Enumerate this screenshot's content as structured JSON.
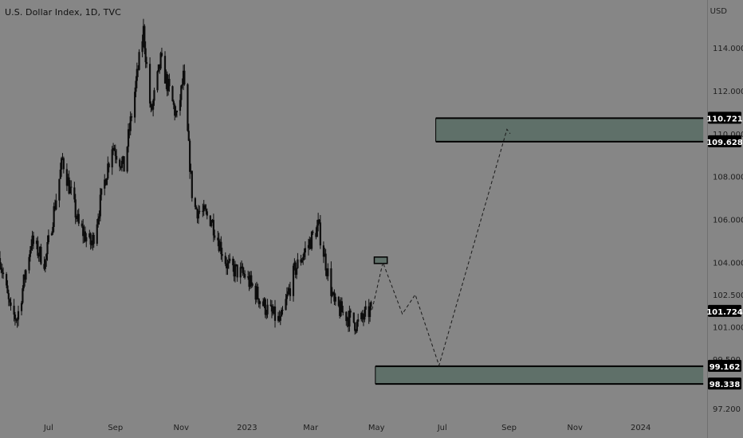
{
  "header": {
    "symbol_title": "U.S. Dollar Index, 1D, TVC",
    "currency": "USD"
  },
  "colors": {
    "background": "#868686",
    "candle": "#0d0d0d",
    "zone_fill": "#5f7069",
    "zone_border": "#000000",
    "label_bg": "#000000",
    "label_text": "#ffffff",
    "tick_text": "#1e1e1e",
    "projection": "#1a1a1a"
  },
  "chart_data": {
    "type": "candlestick",
    "title": "U.S. Dollar Index, 1D, TVC",
    "ylim": [
      97.2,
      115
    ],
    "x_ticks": [
      "Jul",
      "Sep",
      "Nov",
      "2023",
      "Mar",
      "May",
      "Jul",
      "Sep",
      "Nov",
      "2024"
    ],
    "y_ticks": [
      "114.000",
      "112.000",
      "110.000",
      "108.000",
      "106.000",
      "104.000",
      "102.500",
      "101.000",
      "99.500",
      "97.200"
    ],
    "price_path": [
      {
        "x": "2022-05-17",
        "y": 104.2
      },
      {
        "x": "2022-05-27",
        "y": 101.6
      },
      {
        "x": "2022-06-02",
        "y": 101.4
      },
      {
        "x": "2022-06-15",
        "y": 105.0
      },
      {
        "x": "2022-06-28",
        "y": 104.0
      },
      {
        "x": "2022-07-14",
        "y": 108.8
      },
      {
        "x": "2022-07-29",
        "y": 105.7
      },
      {
        "x": "2022-08-10",
        "y": 104.8
      },
      {
        "x": "2022-08-29",
        "y": 109.5
      },
      {
        "x": "2022-09-09",
        "y": 108.4
      },
      {
        "x": "2022-09-27",
        "y": 114.8
      },
      {
        "x": "2022-10-04",
        "y": 110.9
      },
      {
        "x": "2022-10-13",
        "y": 113.4
      },
      {
        "x": "2022-10-28",
        "y": 110.7
      },
      {
        "x": "2022-11-03",
        "y": 112.6
      },
      {
        "x": "2022-11-12",
        "y": 106.6
      },
      {
        "x": "2022-11-29",
        "y": 106.0
      },
      {
        "x": "2022-12-14",
        "y": 103.8
      },
      {
        "x": "2022-12-30",
        "y": 103.4
      },
      {
        "x": "2023-01-18",
        "y": 101.9
      },
      {
        "x": "2023-02-01",
        "y": 101.2
      },
      {
        "x": "2023-02-14",
        "y": 103.6
      },
      {
        "x": "2023-03-08",
        "y": 105.7
      },
      {
        "x": "2023-03-23",
        "y": 102.0
      },
      {
        "x": "2023-04-13",
        "y": 101.1
      },
      {
        "x": "2023-04-26",
        "y": 101.8
      }
    ],
    "annotations": {
      "upper_zone": {
        "top": 110.721,
        "bottom": 109.628,
        "x_start": "2023-06-25",
        "x_end": "2024-02-28"
      },
      "lower_zone": {
        "top": 99.162,
        "bottom": 98.338,
        "x_start": "2023-04-30",
        "x_end": "2024-02-28"
      },
      "small_box": {
        "top": 104.25,
        "bottom": 103.95,
        "x_start": "2023-04-29",
        "x_end": "2023-05-11"
      },
      "projection_path": [
        {
          "x": "2023-04-27",
          "y": 101.8
        },
        {
          "x": "2023-05-07",
          "y": 104.0
        },
        {
          "x": "2023-05-25",
          "y": 101.6
        },
        {
          "x": "2023-06-06",
          "y": 102.5
        },
        {
          "x": "2023-06-28",
          "y": 99.2
        },
        {
          "x": "2023-08-30",
          "y": 110.2
        },
        {
          "x": "2023-09-02",
          "y": 110.0
        }
      ]
    },
    "price_labels": [
      {
        "value": "110.721",
        "y": 110.721
      },
      {
        "value": "109.628",
        "y": 109.628
      },
      {
        "value": "101.724",
        "y": 101.724
      },
      {
        "value": "99.162",
        "y": 99.162
      },
      {
        "value": "98.338",
        "y": 98.338
      }
    ],
    "grid": false
  }
}
